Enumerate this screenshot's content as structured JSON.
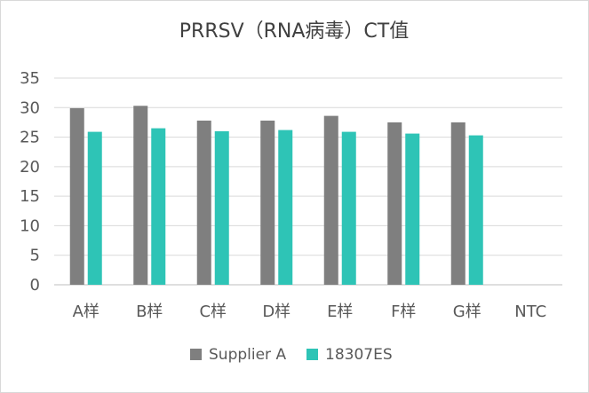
{
  "chart_data": {
    "type": "bar",
    "title": "PRRSV（RNA病毒）CT值",
    "categories": [
      "A样",
      "B样",
      "C样",
      "D样",
      "E样",
      "F样",
      "G样",
      "NTC"
    ],
    "series": [
      {
        "name": "Supplier A",
        "color": "#7f7f7f",
        "values": [
          29.9,
          30.3,
          27.8,
          27.8,
          28.6,
          27.5,
          27.5,
          null
        ]
      },
      {
        "name": "18307ES",
        "color": "#2ec4b6",
        "values": [
          25.9,
          26.5,
          26.0,
          26.2,
          25.9,
          25.6,
          25.3,
          null
        ]
      }
    ],
    "yticks": [
      0,
      5,
      10,
      15,
      20,
      25,
      30,
      35
    ],
    "ylim": [
      0,
      35
    ],
    "grid": true,
    "legend_position": "bottom",
    "gridline_color": "#d9d9d9",
    "axis_color": "#bfbfbf"
  }
}
